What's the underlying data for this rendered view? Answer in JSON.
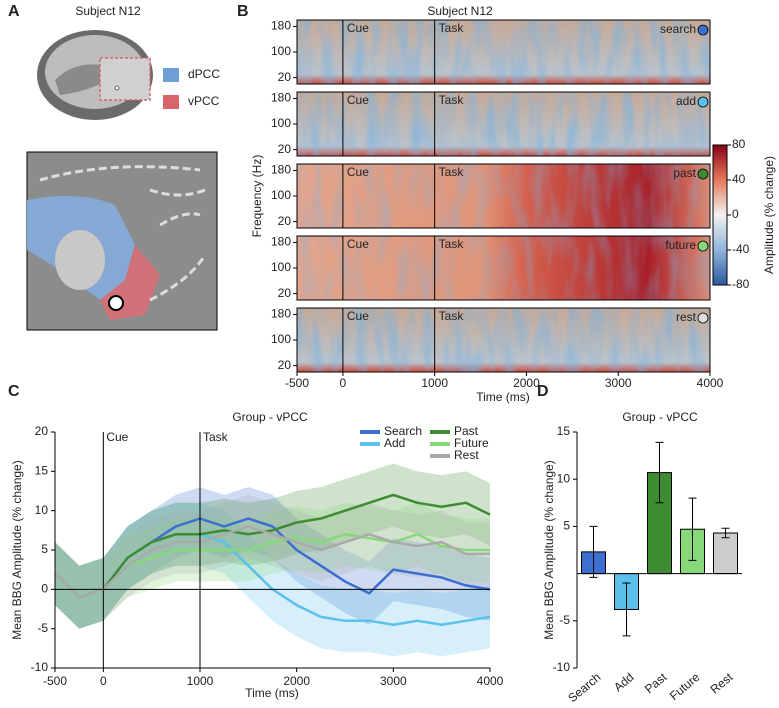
{
  "panel_labels": [
    "A",
    "B",
    "C",
    "D"
  ],
  "panel_a": {
    "title": "Subject N12",
    "legend": [
      {
        "name": "dPCC",
        "color": "#6d9fd6"
      },
      {
        "name": "vPCC",
        "color": "#d9646c"
      }
    ]
  },
  "chart_data": [
    {
      "type": "heatmap",
      "title": "Subject N12",
      "ylabel": "Frequency (Hz)",
      "xlabel": "Time (ms)",
      "rows": [
        {
          "label": "search",
          "color": "#3c6fd1"
        },
        {
          "label": "add",
          "color": "#5bc0eb"
        },
        {
          "label": "past",
          "color": "#3d8c32"
        },
        {
          "label": "future",
          "color": "#86d878"
        },
        {
          "label": "rest",
          "color": "#dddddd"
        }
      ],
      "ylim": [
        0,
        200
      ],
      "yticks": [
        20,
        100,
        180
      ],
      "xlim": [
        -500,
        4000
      ],
      "xticks": [
        -500,
        0,
        1000,
        2000,
        3000,
        4000
      ],
      "events": [
        {
          "x": 0,
          "label": "Cue"
        },
        {
          "x": 1000,
          "label": "Task"
        }
      ],
      "colorbar": {
        "label": "Amplitude (% change)",
        "lim": [
          -80,
          80
        ],
        "ticks": [
          -80,
          -40,
          0,
          40,
          80
        ],
        "colormap": [
          "#2c5aa0",
          "#8fb4d9",
          "#f2f2f2",
          "#e57a5a",
          "#8b0018"
        ]
      }
    },
    {
      "type": "line",
      "title": "Group - vPCC",
      "ylabel": "Mean BBG Amplitude (% change)",
      "xlabel": "Time (ms)",
      "x": [
        -500,
        -250,
        0,
        250,
        500,
        750,
        1000,
        1250,
        1500,
        1750,
        2000,
        2250,
        2500,
        2750,
        3000,
        3250,
        3500,
        3750,
        4000
      ],
      "xlim": [
        -500,
        4000
      ],
      "xticks": [
        -500,
        0,
        1000,
        2000,
        3000,
        4000
      ],
      "ylim": [
        -10,
        20
      ],
      "yticks": [
        -10,
        -5,
        0,
        5,
        10,
        15,
        20
      ],
      "events": [
        {
          "x": 0,
          "label": "Cue"
        },
        {
          "x": 1000,
          "label": "Task"
        }
      ],
      "series": [
        {
          "name": "Search",
          "color": "#3c6fd1",
          "error": 4,
          "values": [
            2,
            -1,
            0,
            4,
            6,
            8,
            9,
            8,
            9,
            8,
            5,
            3,
            1,
            -0.5,
            2.5,
            2,
            1.5,
            0.5,
            0
          ]
        },
        {
          "name": "Add",
          "color": "#5bc0eb",
          "error": 4,
          "values": [
            2,
            -1,
            0,
            4,
            6,
            7,
            7,
            6,
            3,
            0,
            -2,
            -3.5,
            -4,
            -4,
            -4.5,
            -4,
            -4.5,
            -4,
            -3.5
          ]
        },
        {
          "name": "Past",
          "color": "#3d8c32",
          "error": 4,
          "values": [
            2,
            -1,
            0,
            4,
            6,
            7,
            7,
            7.5,
            7,
            7.5,
            8.5,
            9,
            10,
            11,
            12,
            11,
            10.5,
            11,
            9.5
          ]
        },
        {
          "name": "Future",
          "color": "#86d878",
          "error": 4,
          "values": [
            2,
            -1,
            0,
            3,
            4,
            5,
            5,
            5,
            5,
            6,
            6.5,
            6,
            7,
            6.5,
            6,
            7,
            5.5,
            5,
            5
          ]
        },
        {
          "name": "Rest",
          "color": "#aaaaaa",
          "error": 4,
          "values": [
            2,
            -1,
            0,
            3,
            5,
            6,
            6,
            7,
            8,
            7,
            6,
            5,
            6,
            7,
            6,
            5.5,
            6,
            4.5,
            4.5
          ]
        }
      ]
    },
    {
      "type": "bar",
      "title": "Group - vPCC",
      "ylabel": "Mean BBG Amplitude (% change)",
      "categories": [
        "Search",
        "Add",
        "Past",
        "Future",
        "Rest"
      ],
      "values": [
        2.3,
        -3.8,
        10.7,
        4.7,
        4.3
      ],
      "errors": [
        2.7,
        2.8,
        3.2,
        3.3,
        0.5
      ],
      "colors": [
        "#3c6fd1",
        "#5bc0eb",
        "#3d8c32",
        "#86d878",
        "#cccccc"
      ],
      "ylim": [
        -10,
        15
      ],
      "yticks": [
        -10,
        -5,
        5,
        10,
        15
      ]
    }
  ]
}
